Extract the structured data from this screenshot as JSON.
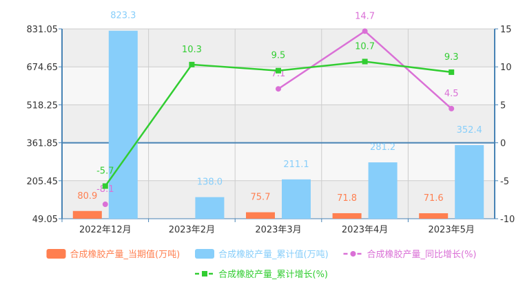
{
  "chart_data": {
    "type": "bar",
    "categories": [
      "2022年12月",
      "2023年2月",
      "2023年3月",
      "2023年4月",
      "2023年5月"
    ],
    "y_left": {
      "min": 49.05,
      "max": 831.05,
      "ticks": [
        "831.05",
        "674.65",
        "518.25",
        "361.85",
        "205.45",
        "49.05"
      ]
    },
    "y_right": {
      "min": -10,
      "max": 15,
      "ticks": [
        "15",
        "10",
        "5",
        "0",
        "-5",
        "-10"
      ]
    },
    "series": [
      {
        "name": "合成橡胶产量_当期值(万吨)",
        "type": "bar",
        "axis": "left",
        "color": "#FF7F50",
        "values": [
          80.9,
          null,
          75.7,
          71.8,
          71.6
        ],
        "labels": [
          "80.9",
          "",
          "75.7",
          "71.8",
          "71.6"
        ]
      },
      {
        "name": "合成橡胶产量_累计值(万吨)",
        "type": "bar",
        "axis": "left",
        "color": "#87CEFA",
        "values": [
          823.3,
          138.0,
          211.1,
          281.2,
          352.4
        ],
        "labels": [
          "823.3",
          "138.0",
          "211.1",
          "281.2",
          "352.4"
        ]
      },
      {
        "name": "合成橡胶产量_同比增长(%)",
        "type": "line",
        "axis": "right",
        "color": "#DA70D6",
        "marker": "circle",
        "values": [
          -8.1,
          null,
          7.1,
          14.7,
          4.5
        ],
        "labels": [
          "-8.1",
          "",
          "7.1",
          "14.7",
          "4.5"
        ]
      },
      {
        "name": "合成橡胶产量_累计增长(%)",
        "type": "line",
        "axis": "right",
        "color": "#32CD32",
        "marker": "square",
        "values": [
          -5.7,
          10.3,
          9.5,
          10.7,
          9.3
        ],
        "labels": [
          "-5.7",
          "10.3",
          "9.5",
          "10.7",
          "9.3"
        ]
      }
    ],
    "grid": true,
    "legend_position": "bottom"
  }
}
